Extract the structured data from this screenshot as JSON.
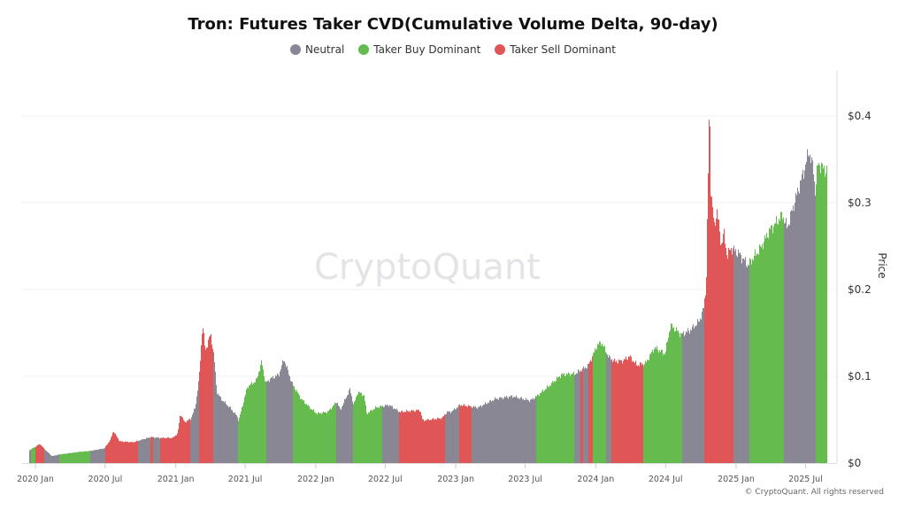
{
  "chart_data": {
    "type": "bar",
    "title": "Tron: Futures Taker CVD(Cumulative Volume Delta, 90-day)",
    "ylabel": "Price",
    "ylim": [
      0,
      0.45
    ],
    "yticks": [
      {
        "v": 0,
        "label": "$0"
      },
      {
        "v": 0.1,
        "label": "$0.1"
      },
      {
        "v": 0.2,
        "label": "$0.2"
      },
      {
        "v": 0.3,
        "label": "$0.3"
      },
      {
        "v": 0.4,
        "label": "$0.4"
      }
    ],
    "xticks": [
      {
        "date": "2020-01-01",
        "label": "2020 Jan"
      },
      {
        "date": "2020-07-01",
        "label": "2020 Jul"
      },
      {
        "date": "2021-01-01",
        "label": "2021 Jan"
      },
      {
        "date": "2021-07-01",
        "label": "2021 Jul"
      },
      {
        "date": "2022-01-01",
        "label": "2022 Jan"
      },
      {
        "date": "2022-07-01",
        "label": "2022 Jul"
      },
      {
        "date": "2023-01-01",
        "label": "2023 Jan"
      },
      {
        "date": "2023-07-01",
        "label": "2023 Jul"
      },
      {
        "date": "2024-01-01",
        "label": "2024 Jan"
      },
      {
        "date": "2024-07-01",
        "label": "2024 Jul"
      },
      {
        "date": "2025-01-01",
        "label": "2025 Jan"
      },
      {
        "date": "2025-07-01",
        "label": "2025 Jul"
      }
    ],
    "grid": true,
    "legend_position": "top-center",
    "legend": [
      {
        "key": "neutral",
        "label": "Neutral",
        "color": "#8a8794"
      },
      {
        "key": "buy",
        "label": "Taker Buy Dominant",
        "color": "#66bb4f"
      },
      {
        "key": "sell",
        "label": "Taker Sell Dominant",
        "color": "#e05656"
      }
    ],
    "price": [
      [
        "2019-12-16",
        0.015
      ],
      [
        "2020-01-12",
        0.022
      ],
      [
        "2020-01-24",
        0.016
      ],
      [
        "2020-02-12",
        0.008
      ],
      [
        "2020-03-04",
        0.01
      ],
      [
        "2020-04-25",
        0.013
      ],
      [
        "2020-05-22",
        0.014
      ],
      [
        "2020-06-28",
        0.017
      ],
      [
        "2020-07-14",
        0.027
      ],
      [
        "2020-07-21",
        0.037
      ],
      [
        "2020-08-07",
        0.025
      ],
      [
        "2020-09-11",
        0.024
      ],
      [
        "2020-10-27",
        0.03
      ],
      [
        "2020-11-19",
        0.029
      ],
      [
        "2020-12-23",
        0.029
      ],
      [
        "2021-01-05",
        0.034
      ],
      [
        "2021-01-12",
        0.057
      ],
      [
        "2021-01-23",
        0.047
      ],
      [
        "2021-02-08",
        0.051
      ],
      [
        "2021-02-20",
        0.064
      ],
      [
        "2021-03-02",
        0.098
      ],
      [
        "2021-03-11",
        0.161
      ],
      [
        "2021-03-18",
        0.129
      ],
      [
        "2021-04-01",
        0.149
      ],
      [
        "2021-04-10",
        0.122
      ],
      [
        "2021-04-17",
        0.082
      ],
      [
        "2021-04-28",
        0.074
      ],
      [
        "2021-05-21",
        0.064
      ],
      [
        "2021-06-09",
        0.054
      ],
      [
        "2021-06-13",
        0.049
      ],
      [
        "2021-07-06",
        0.088
      ],
      [
        "2021-07-29",
        0.095
      ],
      [
        "2021-08-12",
        0.117
      ],
      [
        "2021-08-22",
        0.092
      ],
      [
        "2021-09-03",
        0.097
      ],
      [
        "2021-09-26",
        0.102
      ],
      [
        "2021-10-09",
        0.12
      ],
      [
        "2021-10-30",
        0.092
      ],
      [
        "2021-11-23",
        0.074
      ],
      [
        "2021-12-15",
        0.064
      ],
      [
        "2022-01-03",
        0.057
      ],
      [
        "2022-02-01",
        0.059
      ],
      [
        "2022-02-24",
        0.071
      ],
      [
        "2022-03-05",
        0.061
      ],
      [
        "2022-03-30",
        0.085
      ],
      [
        "2022-04-09",
        0.067
      ],
      [
        "2022-04-20",
        0.082
      ],
      [
        "2022-05-06",
        0.078
      ],
      [
        "2022-05-13",
        0.057
      ],
      [
        "2022-06-06",
        0.064
      ],
      [
        "2022-07-10",
        0.067
      ],
      [
        "2022-08-07",
        0.059
      ],
      [
        "2022-09-29",
        0.061
      ],
      [
        "2022-10-06",
        0.049
      ],
      [
        "2022-11-26",
        0.052
      ],
      [
        "2022-12-08",
        0.059
      ],
      [
        "2022-12-19",
        0.059
      ],
      [
        "2023-01-12",
        0.067
      ],
      [
        "2023-02-27",
        0.064
      ],
      [
        "2023-04-13",
        0.074
      ],
      [
        "2023-05-28",
        0.077
      ],
      [
        "2023-07-13",
        0.072
      ],
      [
        "2023-07-30",
        0.077
      ],
      [
        "2023-08-29",
        0.088
      ],
      [
        "2023-10-03",
        0.102
      ],
      [
        "2023-11-07",
        0.103
      ],
      [
        "2023-12-11",
        0.112
      ],
      [
        "2024-01-04",
        0.136
      ],
      [
        "2024-01-15",
        0.139
      ],
      [
        "2024-02-03",
        0.122
      ],
      [
        "2024-02-19",
        0.117
      ],
      [
        "2024-03-12",
        0.118
      ],
      [
        "2024-03-28",
        0.123
      ],
      [
        "2024-04-16",
        0.113
      ],
      [
        "2024-05-09",
        0.115
      ],
      [
        "2024-06-01",
        0.133
      ],
      [
        "2024-06-29",
        0.126
      ],
      [
        "2024-07-13",
        0.159
      ],
      [
        "2024-08-10",
        0.148
      ],
      [
        "2024-09-02",
        0.153
      ],
      [
        "2024-09-25",
        0.163
      ],
      [
        "2024-10-07",
        0.177
      ],
      [
        "2024-10-14",
        0.204
      ],
      [
        "2024-10-23",
        0.429
      ],
      [
        "2024-10-25",
        0.323
      ],
      [
        "2024-11-04",
        0.271
      ],
      [
        "2024-11-11",
        0.292
      ],
      [
        "2024-11-22",
        0.251
      ],
      [
        "2024-11-29",
        0.265
      ],
      [
        "2024-12-08",
        0.238
      ],
      [
        "2024-12-17",
        0.248
      ],
      [
        "2025-01-08",
        0.241
      ],
      [
        "2025-01-31",
        0.228
      ],
      [
        "2025-02-11",
        0.235
      ],
      [
        "2025-03-05",
        0.248
      ],
      [
        "2025-03-28",
        0.268
      ],
      [
        "2025-05-01",
        0.286
      ],
      [
        "2025-05-13",
        0.271
      ],
      [
        "2025-06-05",
        0.306
      ],
      [
        "2025-06-28",
        0.34
      ],
      [
        "2025-07-09",
        0.36
      ],
      [
        "2025-07-21",
        0.337
      ],
      [
        "2025-07-25",
        0.312
      ],
      [
        "2025-08-02",
        0.347
      ],
      [
        "2025-08-13",
        0.34
      ],
      [
        "2025-08-25",
        0.337
      ]
    ],
    "regimes": [
      [
        "2019-12-16",
        "neutral"
      ],
      [
        "2019-12-20",
        "buy"
      ],
      [
        "2020-01-01",
        "sell"
      ],
      [
        "2020-01-24",
        "neutral"
      ],
      [
        "2020-03-04",
        "buy"
      ],
      [
        "2020-05-22",
        "neutral"
      ],
      [
        "2020-07-02",
        "sell"
      ],
      [
        "2020-09-25",
        "neutral"
      ],
      [
        "2020-10-27",
        "sell"
      ],
      [
        "2020-11-03",
        "neutral"
      ],
      [
        "2020-11-21",
        "sell"
      ],
      [
        "2021-02-08",
        "neutral"
      ],
      [
        "2021-03-02",
        "sell"
      ],
      [
        "2021-04-08",
        "neutral"
      ],
      [
        "2021-06-13",
        "buy"
      ],
      [
        "2021-08-24",
        "neutral"
      ],
      [
        "2021-11-02",
        "buy"
      ],
      [
        "2022-02-24",
        "neutral"
      ],
      [
        "2022-04-07",
        "buy"
      ],
      [
        "2022-06-24",
        "neutral"
      ],
      [
        "2022-08-07",
        "sell"
      ],
      [
        "2022-12-05",
        "neutral"
      ],
      [
        "2023-01-10",
        "sell"
      ],
      [
        "2023-02-11",
        "neutral"
      ],
      [
        "2023-07-30",
        "buy"
      ],
      [
        "2023-11-05",
        "neutral"
      ],
      [
        "2023-11-23",
        "sell"
      ],
      [
        "2023-11-30",
        "neutral"
      ],
      [
        "2023-12-13",
        "sell"
      ],
      [
        "2023-12-25",
        "buy"
      ],
      [
        "2024-01-27",
        "neutral"
      ],
      [
        "2024-02-10",
        "sell"
      ],
      [
        "2024-05-04",
        "buy"
      ],
      [
        "2024-08-14",
        "neutral"
      ],
      [
        "2024-10-09",
        "sell"
      ],
      [
        "2024-12-24",
        "neutral"
      ],
      [
        "2025-02-05",
        "buy"
      ],
      [
        "2025-05-06",
        "neutral"
      ],
      [
        "2025-07-28",
        "buy"
      ]
    ]
  },
  "watermark": "CryptoQuant",
  "footer": "© CryptoQuant. All rights reserved"
}
